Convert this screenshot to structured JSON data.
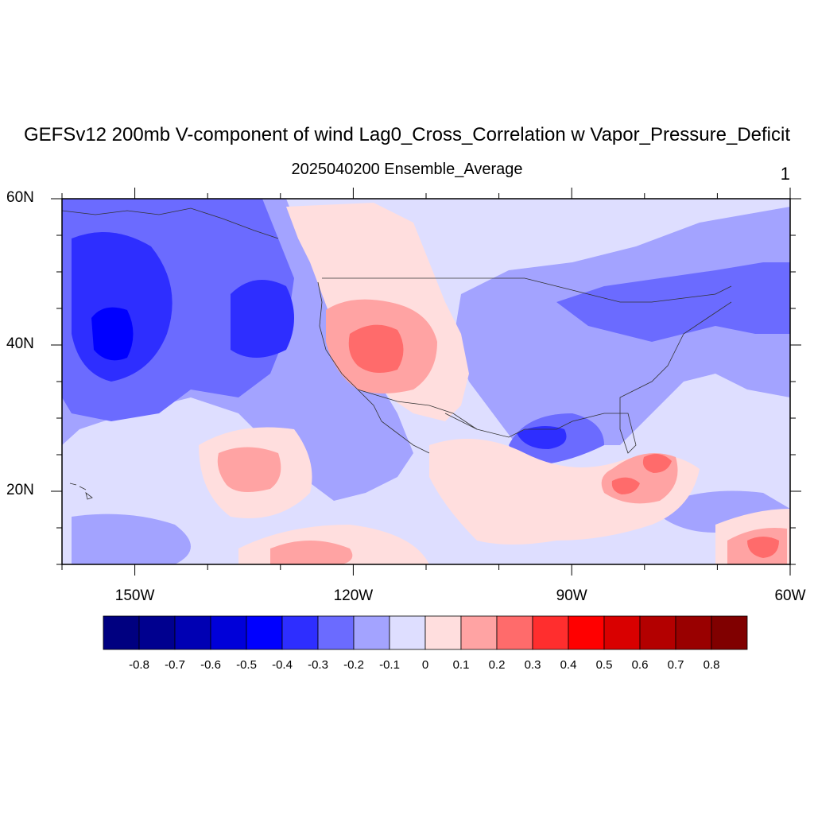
{
  "figure": {
    "title": "GEFSv12 200mb V-component of wind Lag0_Cross_Correlation w Vapor_Pressure_Deficit",
    "subtitle": "2025040200 Ensemble_Average",
    "panel_label": "1"
  },
  "map": {
    "projection": "cylindrical-equidistant",
    "lon_range": [
      -160,
      -60
    ],
    "lat_range": [
      10,
      60
    ],
    "lat_labels": [
      {
        "value": 60,
        "text": "60N"
      },
      {
        "value": 40,
        "text": "40N"
      },
      {
        "value": 20,
        "text": "20N"
      }
    ],
    "lon_labels": [
      {
        "value": -150,
        "text": "150W"
      },
      {
        "value": -120,
        "text": "120W"
      },
      {
        "value": -90,
        "text": "90W"
      },
      {
        "value": -60,
        "text": "60W"
      }
    ]
  },
  "colorbar": {
    "levels": [
      "-0.8",
      "-0.7",
      "-0.6",
      "-0.5",
      "-0.4",
      "-0.3",
      "-0.2",
      "-0.1",
      "0",
      "0.1",
      "0.2",
      "0.3",
      "0.4",
      "0.5",
      "0.6",
      "0.7",
      "0.8"
    ],
    "colors": [
      "#000080",
      "#00008f",
      "#0000b3",
      "#0000d9",
      "#0000ff",
      "#2e2eff",
      "#6b6bff",
      "#a3a3ff",
      "#dedeff",
      "#ffdede",
      "#ffa3a3",
      "#ff6b6b",
      "#ff2e2e",
      "#ff0000",
      "#d90000",
      "#b30000",
      "#990000",
      "#800000"
    ]
  }
}
